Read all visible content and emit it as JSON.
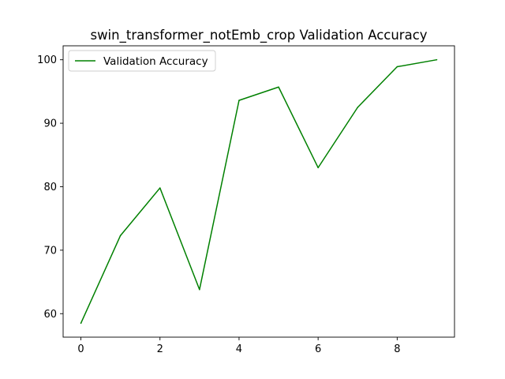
{
  "chart_data": {
    "type": "line",
    "title": "swin_transformer_notEmb_crop Validation Accuracy",
    "xlabel": "",
    "ylabel": "",
    "xlim": [
      -0.45,
      9.45
    ],
    "ylim": [
      56.3,
      102.2
    ],
    "x_ticks": [
      0,
      2,
      4,
      6,
      8
    ],
    "y_ticks": [
      60,
      70,
      80,
      90,
      100
    ],
    "grid": false,
    "legend_position": "upper-left",
    "series": [
      {
        "name": "Validation Accuracy",
        "color": "#008000",
        "x": [
          0,
          1,
          2,
          3,
          4,
          5,
          6,
          7,
          8,
          9
        ],
        "y": [
          58.5,
          72.3,
          79.8,
          63.8,
          93.6,
          95.7,
          83.0,
          92.5,
          98.9,
          100.0
        ]
      }
    ]
  }
}
